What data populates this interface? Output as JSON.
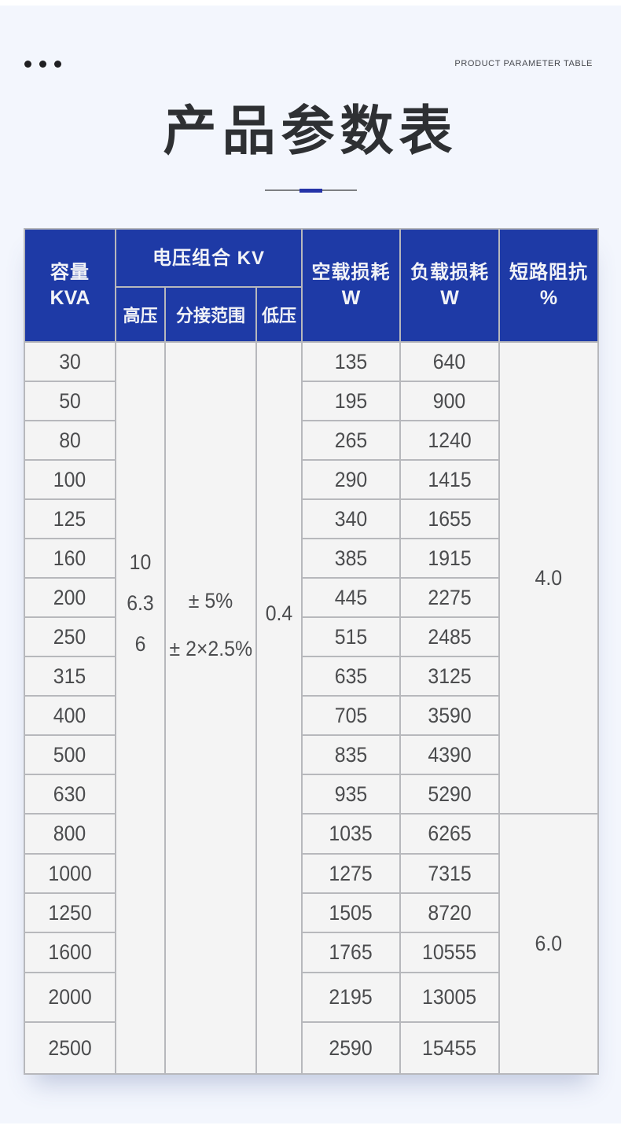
{
  "header": {
    "top_right_label": "PRODUCT PARAMETER TABLE",
    "title": "产品参数表"
  },
  "table": {
    "headers": {
      "capacity_line1": "容量",
      "capacity_line2": "KVA",
      "voltage_group": "电压组合 KV",
      "high_voltage": "高压",
      "tap_range": "分接范围",
      "low_voltage": "低压",
      "no_load_line1": "空载损耗",
      "no_load_line2": "W",
      "load_line1": "负载损耗",
      "load_line2": "W",
      "impedance_line1": "短路阻抗",
      "impedance_line2": "%"
    },
    "merged": {
      "high_voltage_values": [
        "10",
        "6.3",
        "6"
      ],
      "tap_range_values": [
        "± 5%",
        "± 2×2.5%"
      ],
      "low_voltage_value": "0.4",
      "impedance_upper": "4.0",
      "impedance_lower": "6.0"
    },
    "rows": [
      {
        "kva": "30",
        "no_load": "135",
        "load": "640"
      },
      {
        "kva": "50",
        "no_load": "195",
        "load": "900"
      },
      {
        "kva": "80",
        "no_load": "265",
        "load": "1240"
      },
      {
        "kva": "100",
        "no_load": "290",
        "load": "1415"
      },
      {
        "kva": "125",
        "no_load": "340",
        "load": "1655"
      },
      {
        "kva": "160",
        "no_load": "385",
        "load": "1915"
      },
      {
        "kva": "200",
        "no_load": "445",
        "load": "2275"
      },
      {
        "kva": "250",
        "no_load": "515",
        "load": "2485"
      },
      {
        "kva": "315",
        "no_load": "635",
        "load": "3125"
      },
      {
        "kva": "400",
        "no_load": "705",
        "load": "3590"
      },
      {
        "kva": "500",
        "no_load": "835",
        "load": "4390"
      },
      {
        "kva": "630",
        "no_load": "935",
        "load": "5290"
      },
      {
        "kva": "800",
        "no_load": "1035",
        "load": "6265"
      },
      {
        "kva": "1000",
        "no_load": "1275",
        "load": "7315"
      },
      {
        "kva": "1250",
        "no_load": "1505",
        "load": "8720"
      },
      {
        "kva": "1600",
        "no_load": "1765",
        "load": "10555"
      },
      {
        "kva": "2000",
        "no_load": "2195",
        "load": "13005"
      },
      {
        "kva": "2500",
        "no_load": "2590",
        "load": "15455"
      }
    ]
  },
  "colors": {
    "header_bg": "#1e3aa6",
    "accent": "#2533a8",
    "page_bg": "#f3f6fd",
    "cell_bg": "#f4f4f4",
    "grid_line": "#b7b8bc"
  }
}
